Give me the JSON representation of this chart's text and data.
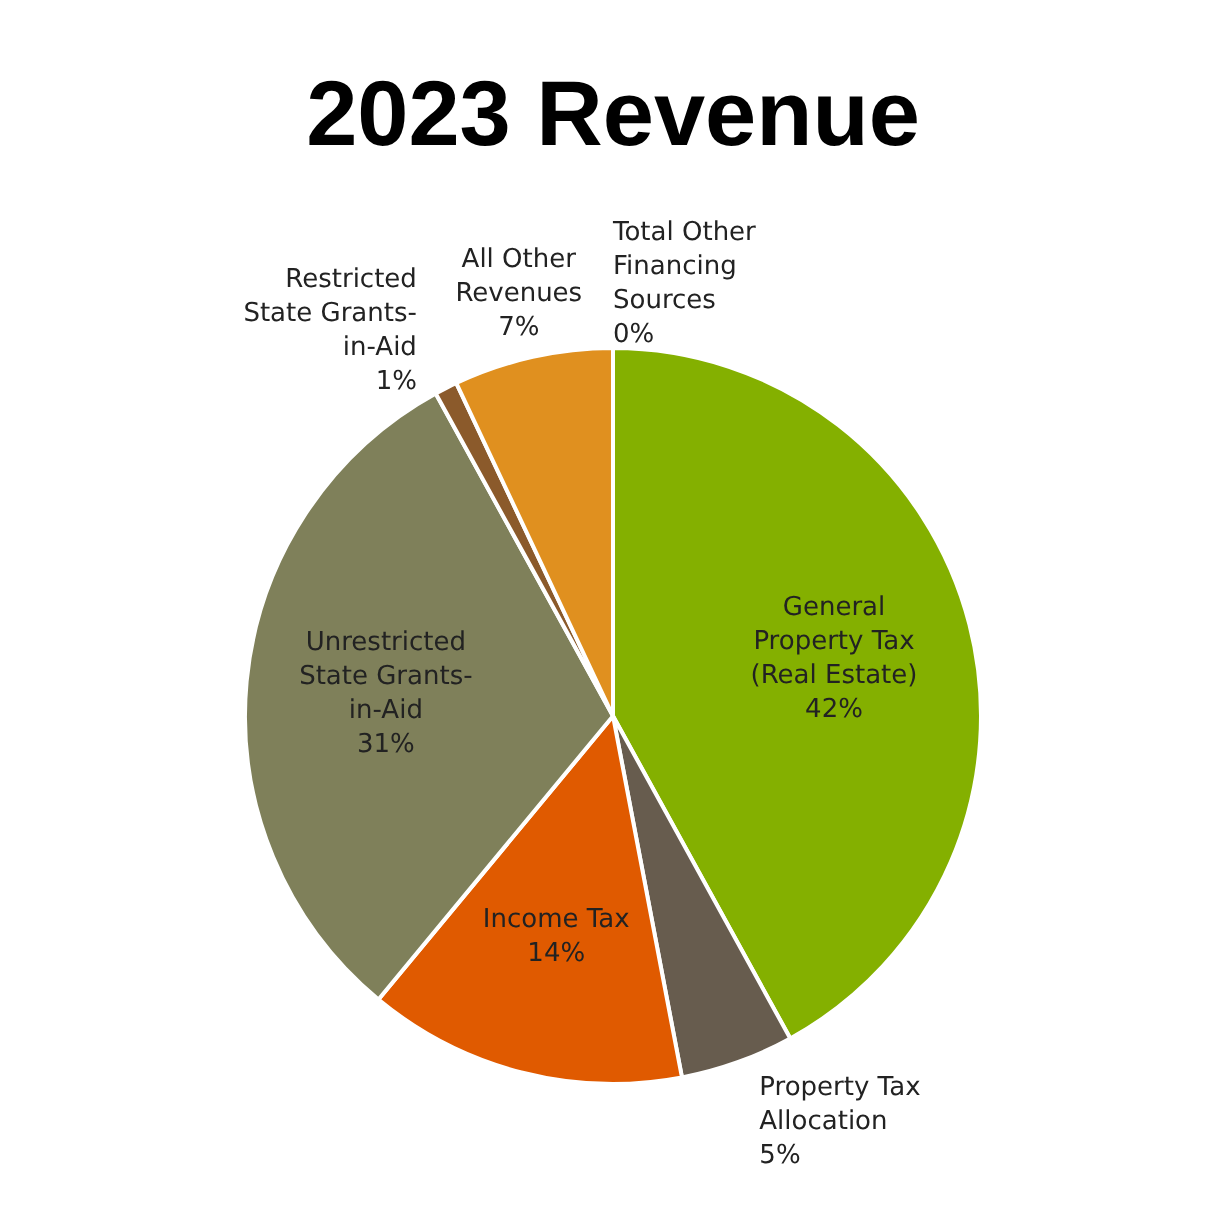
{
  "chart_data": {
    "type": "pie",
    "title": "2023 Revenue",
    "categories": [
      "General Property Tax (Real Estate)",
      "Property Tax Allocation",
      "Income Tax",
      "Unrestricted State Grants-in-Aid",
      "Restricted State Grants-in-Aid",
      "All Other Revenues",
      "Total Other Financing Sources"
    ],
    "values": [
      42,
      5,
      14,
      31,
      1,
      7,
      0
    ],
    "value_labels": [
      "42%",
      "5%",
      "14%",
      "31%",
      "1%",
      "7%",
      "0%"
    ],
    "colors": [
      "#84b000",
      "#675c4e",
      "#e05a00",
      "#7f805a",
      "#8b5a2b",
      "#e0901f",
      "#b0b0b0"
    ]
  }
}
